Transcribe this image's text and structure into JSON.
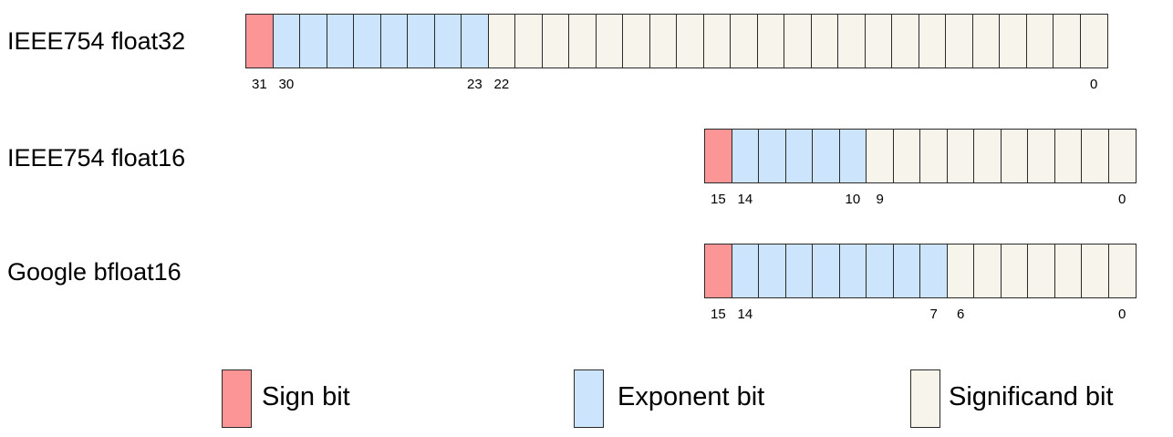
{
  "colors": {
    "sign": "#fb9596",
    "exponent": "#cce5fd",
    "significand": "#f7f5eb"
  },
  "formats": [
    {
      "label": "IEEE754 float32",
      "total_bits": 32,
      "sign_bits": 1,
      "exponent_bits": 8,
      "significand_bits": 23,
      "index_labels": [
        {
          "bit": 31,
          "text": "31"
        },
        {
          "bit": 30,
          "text": "30"
        },
        {
          "bit": 23,
          "text": "23"
        },
        {
          "bit": 22,
          "text": "22"
        },
        {
          "bit": 0,
          "text": "0"
        }
      ]
    },
    {
      "label": "IEEE754 float16",
      "total_bits": 16,
      "sign_bits": 1,
      "exponent_bits": 5,
      "significand_bits": 10,
      "index_labels": [
        {
          "bit": 15,
          "text": "15"
        },
        {
          "bit": 14,
          "text": "14"
        },
        {
          "bit": 10,
          "text": "10"
        },
        {
          "bit": 9,
          "text": "9"
        },
        {
          "bit": 0,
          "text": "0"
        }
      ]
    },
    {
      "label": "Google bfloat16",
      "total_bits": 16,
      "sign_bits": 1,
      "exponent_bits": 8,
      "significand_bits": 7,
      "index_labels": [
        {
          "bit": 15,
          "text": "15"
        },
        {
          "bit": 14,
          "text": "14"
        },
        {
          "bit": 7,
          "text": "7"
        },
        {
          "bit": 6,
          "text": "6"
        },
        {
          "bit": 0,
          "text": "0"
        }
      ]
    }
  ],
  "legend": [
    {
      "kind": "sign",
      "label": "Sign bit"
    },
    {
      "kind": "exponent",
      "label": "Exponent bit"
    },
    {
      "kind": "significand",
      "label": "Significand bit"
    }
  ]
}
